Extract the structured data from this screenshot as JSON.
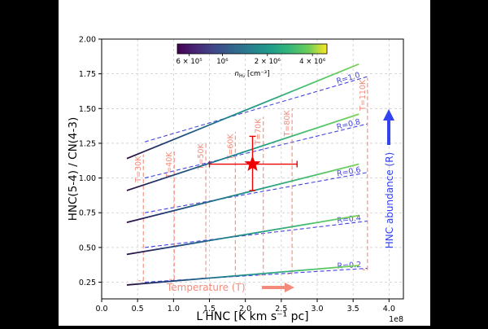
{
  "chart_data": {
    "type": "line",
    "xlabel": "L′HNC [K km s⁻¹ pc]",
    "ylabel": "HNC(5-4) / CN(4-3)",
    "x_offset_label": "1e8",
    "xlim": [
      0.0,
      4.2
    ],
    "ylim": [
      0.13,
      2.0
    ],
    "xticks": [
      0.0,
      0.5,
      1.0,
      1.5,
      2.0,
      2.5,
      3.0,
      3.5,
      4.0
    ],
    "xtick_labels": [
      "0.0",
      "0.5",
      "1.0",
      "1.5",
      "2.0",
      "2.5",
      "3.0",
      "3.5",
      "4.0"
    ],
    "yticks": [
      0.25,
      0.5,
      0.75,
      1.0,
      1.25,
      1.5,
      1.75,
      2.0
    ],
    "ytick_labels": [
      "0.25",
      "0.50",
      "0.75",
      "1.00",
      "1.25",
      "1.50",
      "1.75",
      "2.00"
    ],
    "grid": true,
    "colorbar": {
      "label": "n_H2 [cm⁻³]",
      "label_text": "n",
      "label_sub": "H₂",
      "label_unit": " [cm⁻³]",
      "tick_labels": [
        "6 × 10⁵",
        "10⁶",
        "2 × 10⁶",
        "4 × 10⁶"
      ],
      "tick_values": [
        600000,
        1000000,
        2000000,
        4000000
      ],
      "range": [
        500000,
        5000000
      ],
      "scale": "log",
      "colormap": "viridis"
    },
    "density_tracks": [
      {
        "x": [
          0.35,
          3.58
        ],
        "y": [
          0.23,
          0.37
        ]
      },
      {
        "x": [
          0.35,
          3.58
        ],
        "y": [
          0.45,
          0.73
        ]
      },
      {
        "x": [
          0.35,
          3.58
        ],
        "y": [
          0.68,
          1.1
        ]
      },
      {
        "x": [
          0.35,
          3.58
        ],
        "y": [
          0.91,
          1.46
        ]
      },
      {
        "x": [
          0.35,
          3.58
        ],
        "y": [
          1.14,
          1.82
        ]
      }
    ],
    "abundance_lines": [
      {
        "label": "R=0.2",
        "x": [
          0.6,
          3.7
        ],
        "y": [
          0.25,
          0.35
        ]
      },
      {
        "label": "R=0.4",
        "x": [
          0.6,
          3.7
        ],
        "y": [
          0.5,
          0.69
        ]
      },
      {
        "label": "R=0.6",
        "x": [
          0.6,
          3.7
        ],
        "y": [
          0.75,
          1.04
        ]
      },
      {
        "label": "R=0.8",
        "x": [
          0.6,
          3.7
        ],
        "y": [
          1.0,
          1.39
        ]
      },
      {
        "label": "R=1.0",
        "x": [
          0.6,
          3.7
        ],
        "y": [
          1.26,
          1.73
        ]
      }
    ],
    "temperature_lines": [
      {
        "label": "T=30K",
        "x": 0.58,
        "y": [
          0.26,
          1.17
        ]
      },
      {
        "label": "T=40K",
        "x": 1.01,
        "y": [
          0.27,
          1.2
        ]
      },
      {
        "label": "T=50K",
        "x": 1.45,
        "y": [
          0.28,
          1.26
        ]
      },
      {
        "label": "T=60K",
        "x": 1.86,
        "y": [
          0.29,
          1.33
        ]
      },
      {
        "label": "T=70K",
        "x": 2.25,
        "y": [
          0.3,
          1.44
        ]
      },
      {
        "label": "T=80K",
        "x": 2.65,
        "y": [
          0.31,
          1.5
        ]
      },
      {
        "label": "T=110K",
        "x": 3.7,
        "y": [
          0.34,
          1.72
        ]
      }
    ],
    "measurement": {
      "x": 2.1,
      "y": 1.1,
      "x_err": [
        0.6,
        0.62
      ],
      "y_err": [
        0.19,
        0.2
      ]
    },
    "annotations": {
      "temperature_arrow": "Temperature (T)",
      "abundance_arrow": "HNC abundance (R)"
    },
    "colors": {
      "abundance": "#4444dd",
      "temperature": "#f58a7a",
      "measurement": "#ee0000",
      "arrow_blue": "#3344ee",
      "arrow_salmon": "#f58a7a"
    }
  }
}
